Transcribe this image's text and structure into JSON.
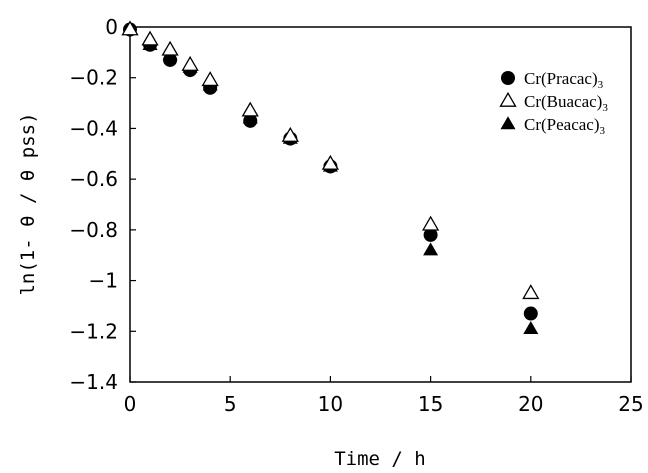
{
  "chart_data": {
    "type": "scatter",
    "xlabel": "Time / h",
    "ylabel": "ln(1- θ / θ pss)",
    "xlim": [
      0,
      25
    ],
    "ylim": [
      -1.4,
      0
    ],
    "xticks": [
      0,
      5,
      10,
      15,
      20,
      25
    ],
    "yticks": [
      0,
      -0.2,
      -0.4,
      -0.6,
      -0.8,
      -1,
      -1.2,
      -1.4
    ],
    "xtick_labels": [
      "0",
      "5",
      "10",
      "15",
      "20",
      "25"
    ],
    "ytick_labels": [
      "0",
      "−0.2",
      "−0.4",
      "−0.6",
      "−0.8",
      "−1",
      "−1.2",
      "−1.4"
    ],
    "grid": false,
    "legend_position": "top-right",
    "series": [
      {
        "name": "Cr(Pracac)",
        "name_subscript": "3",
        "marker": "filled-circle",
        "color": "#000000",
        "x": [
          0,
          1,
          2,
          3,
          4,
          6,
          8,
          10,
          15,
          20
        ],
        "y": [
          -0.01,
          -0.07,
          -0.13,
          -0.17,
          -0.24,
          -0.37,
          -0.44,
          -0.55,
          -0.82,
          -1.13
        ]
      },
      {
        "name": "Cr(Buacac)",
        "name_subscript": "3",
        "marker": "open-triangle",
        "color": "#000000",
        "x": [
          0,
          1,
          2,
          3,
          4,
          6,
          8,
          10,
          15,
          20
        ],
        "y": [
          -0.01,
          -0.05,
          -0.09,
          -0.15,
          -0.21,
          -0.33,
          -0.43,
          -0.54,
          -0.78,
          -1.05
        ]
      },
      {
        "name": "Cr(Peacac)",
        "name_subscript": "3",
        "marker": "filled-triangle",
        "color": "#000000",
        "x": [
          0,
          1,
          2,
          3,
          4,
          6,
          8,
          10,
          15,
          20
        ],
        "y": [
          -0.01,
          -0.07,
          -0.11,
          -0.16,
          -0.23,
          -0.36,
          -0.44,
          -0.55,
          -0.88,
          -1.19
        ]
      }
    ]
  }
}
